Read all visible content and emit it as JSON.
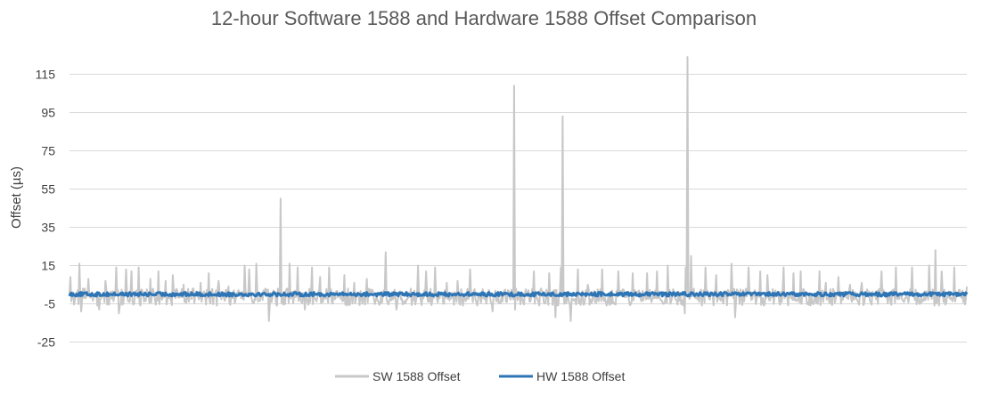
{
  "chart_data": {
    "type": "line",
    "title": "12-hour Software 1588 and Hardware 1588 Offset Comparison",
    "xlabel": "",
    "ylabel": "Offset (µs)",
    "ylim": [
      -35,
      125
    ],
    "yticks": [
      -25,
      -5,
      15,
      35,
      55,
      75,
      95,
      115
    ],
    "grid": true,
    "legend": "bottom-center",
    "sample_count": 1000,
    "series": [
      {
        "name": "SW 1588 Offset",
        "color": "#c8c8c8",
        "baseline": {
          "mean": -1,
          "range": [
            -6,
            3
          ]
        },
        "spikes": [
          {
            "i": 1,
            "v": 9
          },
          {
            "i": 11,
            "v": 16
          },
          {
            "i": 13,
            "v": -9
          },
          {
            "i": 21,
            "v": 8
          },
          {
            "i": 33,
            "v": -8
          },
          {
            "i": 40,
            "v": 7
          },
          {
            "i": 52,
            "v": 14
          },
          {
            "i": 55,
            "v": -10
          },
          {
            "i": 63,
            "v": 13
          },
          {
            "i": 69,
            "v": 12
          },
          {
            "i": 77,
            "v": 14
          },
          {
            "i": 90,
            "v": 8
          },
          {
            "i": 99,
            "v": 12
          },
          {
            "i": 107,
            "v": 7
          },
          {
            "i": 115,
            "v": 10
          },
          {
            "i": 127,
            "v": 5
          },
          {
            "i": 146,
            "v": 6
          },
          {
            "i": 155,
            "v": 11
          },
          {
            "i": 166,
            "v": 7
          },
          {
            "i": 177,
            "v": 4
          },
          {
            "i": 195,
            "v": 15
          },
          {
            "i": 200,
            "v": 13
          },
          {
            "i": 222,
            "v": -14
          },
          {
            "i": 208,
            "v": 16
          },
          {
            "i": 235,
            "v": 50
          },
          {
            "i": 245,
            "v": 16
          },
          {
            "i": 254,
            "v": 14
          },
          {
            "i": 262,
            "v": -8
          },
          {
            "i": 270,
            "v": 14
          },
          {
            "i": 279,
            "v": 9
          },
          {
            "i": 289,
            "v": 14
          },
          {
            "i": 306,
            "v": 10
          },
          {
            "i": 317,
            "v": 6
          },
          {
            "i": 331,
            "v": 8
          },
          {
            "i": 352,
            "v": 22
          },
          {
            "i": 364,
            "v": -8
          },
          {
            "i": 388,
            "v": 15
          },
          {
            "i": 397,
            "v": 12
          },
          {
            "i": 407,
            "v": 14
          },
          {
            "i": 420,
            "v": 6
          },
          {
            "i": 432,
            "v": 7
          },
          {
            "i": 446,
            "v": 13
          },
          {
            "i": 471,
            "v": -9
          },
          {
            "i": 495,
            "v": 109
          },
          {
            "i": 496,
            "v": -8
          },
          {
            "i": 517,
            "v": 12
          },
          {
            "i": 534,
            "v": 11
          },
          {
            "i": 547,
            "v": 14
          },
          {
            "i": 549,
            "v": 93
          },
          {
            "i": 541,
            "v": -12
          },
          {
            "i": 566,
            "v": 13
          },
          {
            "i": 558,
            "v": -14
          },
          {
            "i": 577,
            "v": 5
          },
          {
            "i": 593,
            "v": 13
          },
          {
            "i": 611,
            "v": 12
          },
          {
            "i": 627,
            "v": 11
          },
          {
            "i": 643,
            "v": 11
          },
          {
            "i": 654,
            "v": 12
          },
          {
            "i": 666,
            "v": 15
          },
          {
            "i": 686,
            "v": 14
          },
          {
            "i": 688,
            "v": 124
          },
          {
            "i": 692,
            "v": 20
          },
          {
            "i": 685,
            "v": -10
          },
          {
            "i": 708,
            "v": 14
          },
          {
            "i": 720,
            "v": 10
          },
          {
            "i": 737,
            "v": 16
          },
          {
            "i": 741,
            "v": -12
          },
          {
            "i": 756,
            "v": 14
          },
          {
            "i": 769,
            "v": 12
          },
          {
            "i": 777,
            "v": 10
          },
          {
            "i": 795,
            "v": 14
          },
          {
            "i": 806,
            "v": 11
          },
          {
            "i": 814,
            "v": 12
          },
          {
            "i": 835,
            "v": 12
          },
          {
            "i": 842,
            "v": 6
          },
          {
            "i": 856,
            "v": 9
          },
          {
            "i": 869,
            "v": 5
          },
          {
            "i": 882,
            "v": 6
          },
          {
            "i": 904,
            "v": 12
          },
          {
            "i": 920,
            "v": 14
          },
          {
            "i": 938,
            "v": 14
          },
          {
            "i": 957,
            "v": 15
          },
          {
            "i": 964,
            "v": 23
          },
          {
            "i": 971,
            "v": 12
          },
          {
            "i": 985,
            "v": 14
          },
          {
            "i": 999,
            "v": 4
          }
        ]
      },
      {
        "name": "HW 1588 Offset",
        "color": "#2e75b6",
        "baseline": {
          "mean": 0,
          "range": [
            -1,
            1
          ]
        }
      }
    ]
  }
}
